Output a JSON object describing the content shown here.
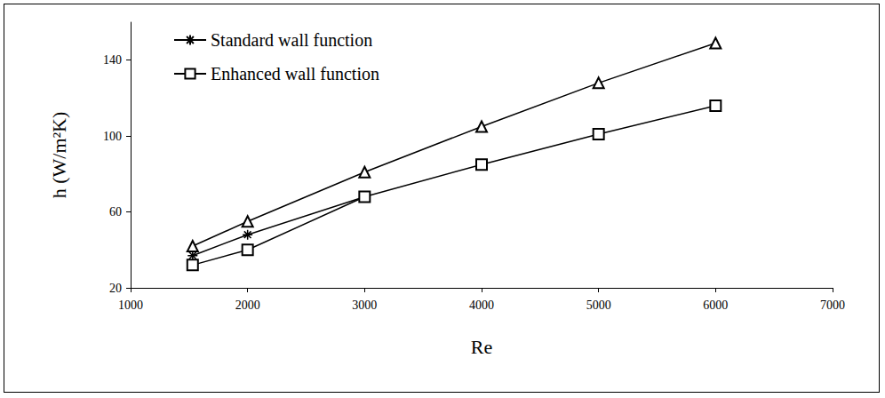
{
  "chart_data": {
    "type": "line",
    "x_label": "Re",
    "y_label": "h (W/m²K)",
    "x": [
      1530,
      2000,
      3000,
      4000,
      5000,
      6000
    ],
    "series": [
      {
        "name": "Standard wall function",
        "color": "#000000",
        "marker": "asterisk",
        "values": [
          37,
          48,
          68,
          null,
          null,
          null
        ]
      },
      {
        "name": "Enhanced wall function",
        "color": "#000000",
        "marker": "square",
        "values": [
          32,
          40,
          68,
          85,
          101,
          116
        ]
      },
      {
        "color": "#000000",
        "marker": "triangle",
        "values": [
          42,
          55,
          81,
          105,
          128,
          149
        ]
      }
    ],
    "xlim": [
      1000,
      7000
    ],
    "xticks": [
      1000,
      2000,
      3000,
      4000,
      5000,
      6000,
      7000
    ],
    "ylim": [
      20,
      160
    ],
    "yticks": [
      20,
      60,
      100,
      140
    ],
    "grid": false,
    "legend": "top-left"
  }
}
